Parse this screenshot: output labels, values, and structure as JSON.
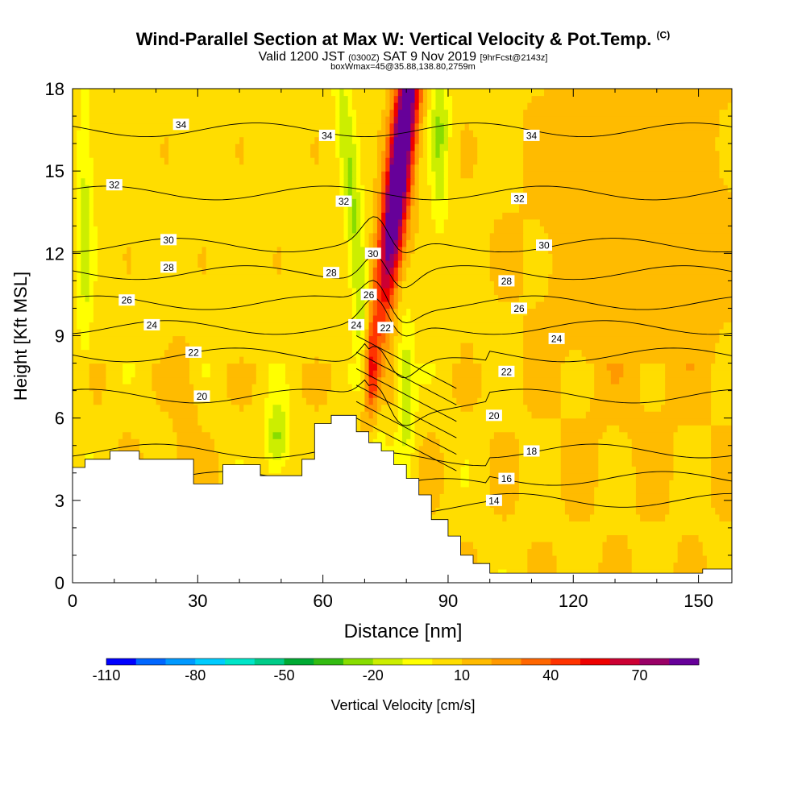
{
  "title": {
    "main": "Wind-Parallel Section at Max W: Vertical Velocity & Pot.Temp.",
    "copyright": "(C)",
    "valid_prefix": "Valid 1200 JST",
    "valid_utc": "(0300Z)",
    "valid_date": "SAT 9 Nov 2019",
    "forecast": "[9hrFcst@2143z]",
    "boxwmax": "boxWmax=45@35.88,138.80,2759m"
  },
  "chart_data": {
    "type": "heatmap",
    "x": {
      "label": "Distance [nm]",
      "range": [
        0,
        158
      ],
      "ticks": [
        "0",
        "30",
        "60",
        "90",
        "120",
        "150"
      ]
    },
    "y": {
      "label": "Height [Kft MSL]",
      "range": [
        0,
        18
      ],
      "ticks": [
        "0",
        "3",
        "6",
        "9",
        "12",
        "15",
        "18"
      ]
    },
    "colorbar": {
      "label": "Vertical Velocity [cm/s]",
      "tick_labels": [
        "-110",
        "-80",
        "-50",
        "-20",
        "10",
        "40",
        "70"
      ],
      "colors": [
        "#0000ff",
        "#0066ff",
        "#0099ff",
        "#00ccff",
        "#00e5c8",
        "#00cc88",
        "#00aa33",
        "#33bb11",
        "#88dd00",
        "#ccee00",
        "#ffff00",
        "#ffdd00",
        "#ffbb00",
        "#ff9900",
        "#ff6600",
        "#ff3300",
        "#ee0000",
        "#cc0033",
        "#990066",
        "#660099"
      ]
    },
    "fill_field": "vertical velocity (cm/s)",
    "contour_field": "potential temperature",
    "contour_labels": [
      {
        "t": "34",
        "x": 26,
        "y": 16.7
      },
      {
        "t": "34",
        "x": 61,
        "y": 16.3
      },
      {
        "t": "34",
        "x": 110,
        "y": 16.3
      },
      {
        "t": "32",
        "x": 10,
        "y": 14.5
      },
      {
        "t": "32",
        "x": 65,
        "y": 13.9
      },
      {
        "t": "32",
        "x": 107,
        "y": 14.0
      },
      {
        "t": "30",
        "x": 23,
        "y": 12.5
      },
      {
        "t": "30",
        "x": 72,
        "y": 12.0
      },
      {
        "t": "30",
        "x": 113,
        "y": 12.3
      },
      {
        "t": "28",
        "x": 23,
        "y": 11.5
      },
      {
        "t": "28",
        "x": 62,
        "y": 11.3
      },
      {
        "t": "28",
        "x": 104,
        "y": 11.0
      },
      {
        "t": "26",
        "x": 13,
        "y": 10.3
      },
      {
        "t": "26",
        "x": 71,
        "y": 10.5
      },
      {
        "t": "26",
        "x": 107,
        "y": 10.0
      },
      {
        "t": "24",
        "x": 19,
        "y": 9.4
      },
      {
        "t": "24",
        "x": 68,
        "y": 9.4
      },
      {
        "t": "24",
        "x": 116,
        "y": 8.9
      },
      {
        "t": "22",
        "x": 29,
        "y": 8.4
      },
      {
        "t": "22",
        "x": 75,
        "y": 9.3
      },
      {
        "t": "22",
        "x": 104,
        "y": 7.7
      },
      {
        "t": "20",
        "x": 31,
        "y": 6.8
      },
      {
        "t": "20",
        "x": 101,
        "y": 6.1
      },
      {
        "t": "18",
        "x": 110,
        "y": 4.8
      },
      {
        "t": "16",
        "x": 104,
        "y": 3.8
      },
      {
        "t": "14",
        "x": 101,
        "y": 3.0
      }
    ],
    "terrain": [
      [
        0,
        4.2
      ],
      [
        3,
        4.2
      ],
      [
        3,
        4.5
      ],
      [
        9,
        4.5
      ],
      [
        9,
        4.8
      ],
      [
        16,
        4.8
      ],
      [
        16,
        4.5
      ],
      [
        26,
        4.5
      ],
      [
        29,
        4.5
      ],
      [
        29,
        3.6
      ],
      [
        36,
        3.6
      ],
      [
        36,
        4.3
      ],
      [
        45,
        4.3
      ],
      [
        45,
        3.9
      ],
      [
        55,
        3.9
      ],
      [
        55,
        4.0
      ],
      [
        55,
        4.5
      ],
      [
        58,
        4.5
      ],
      [
        58,
        5.8
      ],
      [
        62,
        5.8
      ],
      [
        62,
        6.1
      ],
      [
        68,
        6.1
      ],
      [
        68,
        5.5
      ],
      [
        71,
        5.5
      ],
      [
        71,
        5.1
      ],
      [
        74,
        5.1
      ],
      [
        74,
        4.8
      ],
      [
        77,
        4.8
      ],
      [
        77,
        4.3
      ],
      [
        80,
        4.3
      ],
      [
        80,
        3.8
      ],
      [
        83,
        3.8
      ],
      [
        83,
        3.2
      ],
      [
        86,
        3.2
      ],
      [
        86,
        2.3
      ],
      [
        90,
        2.3
      ],
      [
        90,
        1.7
      ],
      [
        93,
        1.7
      ],
      [
        93,
        1.0
      ],
      [
        96,
        1.0
      ],
      [
        96,
        0.7
      ],
      [
        100,
        0.7
      ],
      [
        100,
        0.35
      ],
      [
        151,
        0.35
      ],
      [
        151,
        0.5
      ],
      [
        158,
        0.5
      ],
      [
        158,
        0.0
      ],
      [
        0,
        0.0
      ]
    ]
  }
}
